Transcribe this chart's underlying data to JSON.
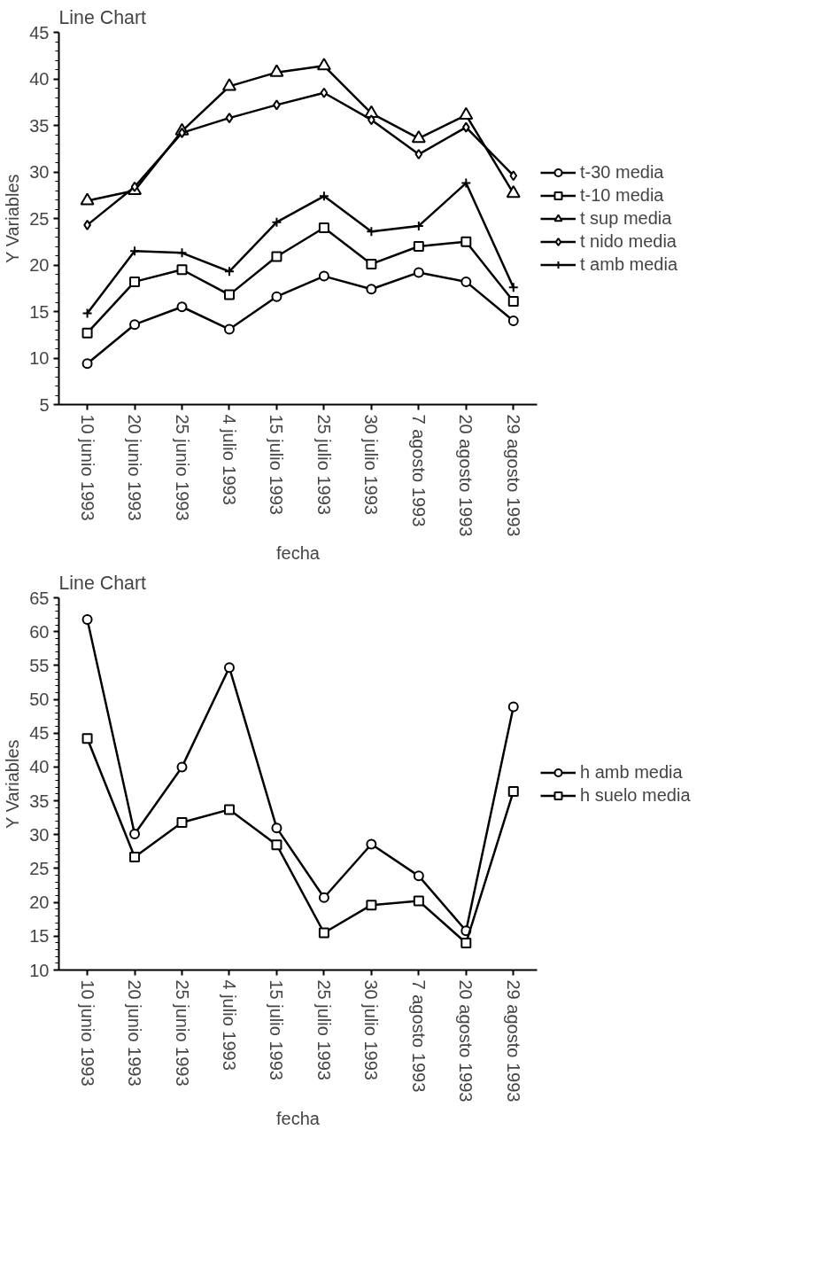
{
  "chart_data": [
    {
      "type": "line",
      "title": "Line Chart",
      "xlabel": "fecha",
      "ylabel": "Y Variables",
      "legend": "right",
      "grid": false,
      "categories": [
        "10 junio 1993",
        "20 junio 1993",
        "25 junio 1993",
        "4 julio 1993",
        "15 julio 1993",
        "25 julio 1993",
        "30 julio 1993",
        "7 agosto 1993",
        "20 agosto 1993",
        "29 agosto 1993"
      ],
      "ylim": [
        5,
        45
      ],
      "yticks": [
        5,
        10,
        15,
        20,
        25,
        30,
        35,
        40,
        45
      ],
      "series": [
        {
          "name": "t-30 media",
          "color": "#000000",
          "marker": "circle",
          "values": [
            9.4,
            13.6,
            15.5,
            13.1,
            16.6,
            18.8,
            17.4,
            19.2,
            18.2,
            14.0
          ]
        },
        {
          "name": "t-10 media",
          "color": "#000000",
          "marker": "square",
          "values": [
            12.7,
            18.2,
            19.5,
            16.8,
            20.9,
            24.0,
            20.1,
            22.0,
            22.5,
            16.1
          ]
        },
        {
          "name": "t sup media",
          "color": "#000000",
          "marker": "triangle",
          "values": [
            26.9,
            28.0,
            34.4,
            39.2,
            40.7,
            41.4,
            36.3,
            33.6,
            36.1,
            27.7
          ]
        },
        {
          "name": "t nido media",
          "color": "#000000",
          "marker": "diamond",
          "values": [
            24.3,
            28.4,
            34.2,
            35.8,
            37.2,
            38.5,
            35.6,
            31.9,
            34.8,
            29.6
          ]
        },
        {
          "name": "t amb media",
          "color": "#000000",
          "marker": "cross",
          "values": [
            14.8,
            21.5,
            21.3,
            19.3,
            24.6,
            27.4,
            23.6,
            24.2,
            28.8,
            17.6
          ]
        }
      ]
    },
    {
      "type": "line",
      "title": "Line Chart",
      "xlabel": "fecha",
      "ylabel": "Y Variables",
      "legend": "right",
      "grid": false,
      "categories": [
        "10 junio 1993",
        "20 junio 1993",
        "25 junio 1993",
        "4 julio 1993",
        "15 julio 1993",
        "25 julio 1993",
        "30 julio 1993",
        "7 agosto 1993",
        "20 agosto 1993",
        "29 agosto 1993"
      ],
      "ylim": [
        10,
        65
      ],
      "yticks": [
        10,
        15,
        20,
        25,
        30,
        35,
        40,
        45,
        50,
        55,
        60,
        65
      ],
      "series": [
        {
          "name": "h amb media",
          "color": "#000000",
          "marker": "circle",
          "values": [
            61.8,
            30.1,
            40.0,
            54.7,
            31.0,
            20.7,
            28.6,
            23.9,
            15.8,
            48.9
          ]
        },
        {
          "name": "h suelo media",
          "color": "#000000",
          "marker": "square",
          "values": [
            44.2,
            26.7,
            31.8,
            33.7,
            28.5,
            15.5,
            19.6,
            20.2,
            14.0,
            36.4
          ]
        }
      ]
    }
  ]
}
